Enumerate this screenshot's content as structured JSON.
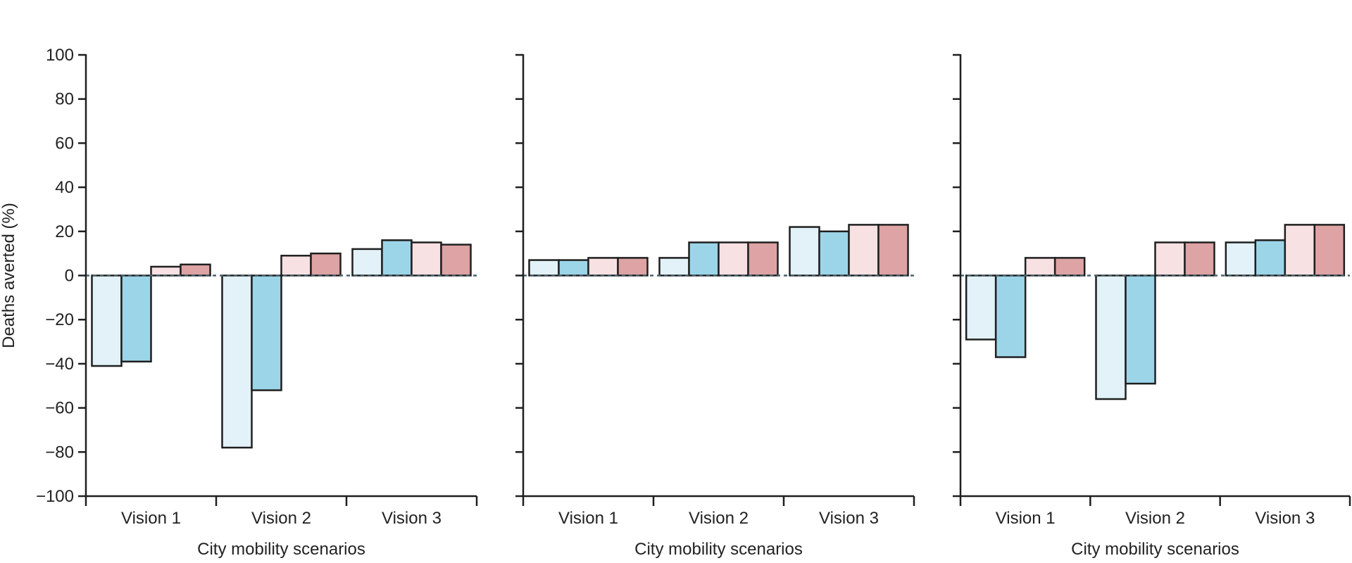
{
  "chart_data": [
    {
      "type": "bar",
      "ylabel": "Deaths averted (%)",
      "xlabel": "City mobility scenarios",
      "ylim": [
        -100,
        100
      ],
      "yticks": [
        -100,
        -80,
        -60,
        -40,
        -20,
        0,
        20,
        40,
        60,
        80,
        100
      ],
      "ytick_labels": [
        "−100",
        "−80",
        "−60",
        "−40",
        "−20",
        "0",
        "20",
        "40",
        "60",
        "80",
        "100"
      ],
      "categories": [
        "Vision 1",
        "Vision 2",
        "Vision 3"
      ],
      "series": [
        {
          "color": "#e2f2f8",
          "values": [
            -41,
            -78,
            12
          ]
        },
        {
          "color": "#9dd5e8",
          "values": [
            -39,
            -52,
            16
          ]
        },
        {
          "color": "#f7e1e3",
          "values": [
            4,
            9,
            15
          ]
        },
        {
          "color": "#dea3a4",
          "values": [
            5,
            10,
            14
          ]
        }
      ]
    },
    {
      "type": "bar",
      "ylabel": "",
      "xlabel": "City mobility scenarios",
      "ylim": [
        -100,
        100
      ],
      "yticks": [
        -100,
        -80,
        -60,
        -40,
        -20,
        0,
        20,
        40,
        60,
        80,
        100
      ],
      "ytick_labels": [],
      "categories": [
        "Vision 1",
        "Vision 2",
        "Vision 3"
      ],
      "series": [
        {
          "color": "#e2f2f8",
          "values": [
            7,
            8,
            22
          ]
        },
        {
          "color": "#9dd5e8",
          "values": [
            7,
            15,
            20
          ]
        },
        {
          "color": "#f7e1e3",
          "values": [
            8,
            15,
            23
          ]
        },
        {
          "color": "#dea3a4",
          "values": [
            8,
            15,
            23
          ]
        }
      ]
    },
    {
      "type": "bar",
      "ylabel": "",
      "xlabel": "City mobility scenarios",
      "ylim": [
        -100,
        100
      ],
      "yticks": [
        -100,
        -80,
        -60,
        -40,
        -20,
        0,
        20,
        40,
        60,
        80,
        100
      ],
      "ytick_labels": [],
      "categories": [
        "Vision 1",
        "Vision 2",
        "Vision 3"
      ],
      "series": [
        {
          "color": "#e2f2f8",
          "values": [
            -29,
            -56,
            15
          ]
        },
        {
          "color": "#9dd5e8",
          "values": [
            -37,
            -49,
            16
          ]
        },
        {
          "color": "#f7e1e3",
          "values": [
            8,
            15,
            23
          ]
        },
        {
          "color": "#dea3a4",
          "values": [
            8,
            15,
            23
          ]
        }
      ]
    }
  ]
}
